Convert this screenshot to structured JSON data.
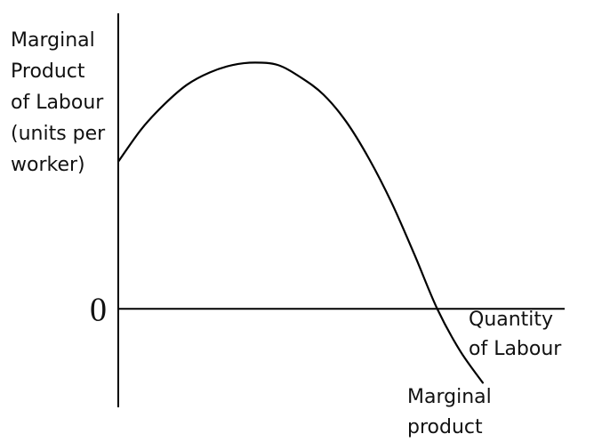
{
  "chart_data": {
    "type": "line",
    "ylabel_lines": [
      "Marginal",
      "Product",
      "of Labour",
      "(units per",
      "worker)"
    ],
    "xlabel_lines": [
      "Quantity",
      "of Labour"
    ],
    "y_tick_zero": "0",
    "series": [
      {
        "name": "Marginal product",
        "name_lines": [
          "Marginal",
          "product"
        ],
        "color": "#000000",
        "x": [
          0.0,
          0.5,
          1.0,
          1.5,
          2.0,
          2.5,
          3.0,
          3.5,
          4.0,
          4.5,
          5.0,
          5.5,
          6.0,
          6.5,
          7.0,
          7.5,
          8.0
        ],
        "y": [
          6.0,
          7.3,
          8.3,
          9.1,
          9.6,
          9.9,
          10.0,
          9.9,
          9.4,
          8.7,
          7.6,
          6.1,
          4.3,
          2.2,
          0.0,
          -1.7,
          -3.0
        ]
      }
    ],
    "xlim": [
      -0.4,
      9.8
    ],
    "ylim": [
      -4.0,
      12.0
    ],
    "grid": false,
    "legend": "none"
  }
}
